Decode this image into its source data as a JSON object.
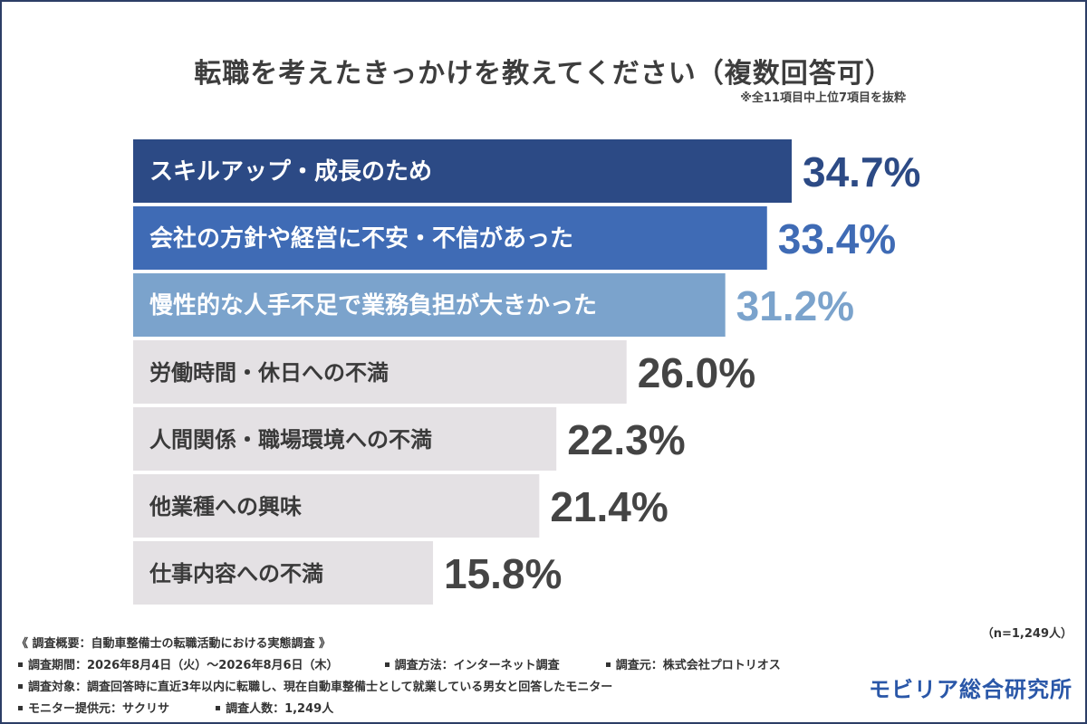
{
  "header": {
    "title": "転職を考えたきっかけを教えてください（複数回答可）",
    "note": "※全11項目中上位7項目を抜粋"
  },
  "chart_data": {
    "type": "bar",
    "orientation": "horizontal",
    "title": "転職を考えたきっかけを教えてください（複数回答可）",
    "categories": [
      "スキルアップ・成長のため",
      "会社の方針や経営に不安・不信があった",
      "慢性的な人手不足で業務負担が大きかった",
      "労働時間・休日への不満",
      "人間関係・職場環境への不満",
      "他業種への興味",
      "仕事内容への不満"
    ],
    "values": [
      34.7,
      33.4,
      31.2,
      26.0,
      22.3,
      21.4,
      15.8
    ],
    "value_labels": [
      "34.7%",
      "33.4%",
      "31.2%",
      "26.0%",
      "22.3%",
      "21.4%",
      "15.8%"
    ],
    "unit": "%",
    "xlim": [
      0,
      40
    ],
    "grid": false,
    "legend": "none",
    "bar_colors": [
      "#2c4a85",
      "#3f6bb5",
      "#7ba3cc",
      "#e4e1e4",
      "#e4e1e4",
      "#e4e1e4",
      "#e4e1e4"
    ],
    "label_colors": [
      "#ffffff",
      "#ffffff",
      "#ffffff",
      "#3a3a3a",
      "#3a3a3a",
      "#3a3a3a",
      "#3a3a3a"
    ],
    "value_colors": [
      "#2c4a85",
      "#3f6bb5",
      "#7ba3cc",
      "#444444",
      "#444444",
      "#444444",
      "#444444"
    ]
  },
  "footer": {
    "overview": "《 調査概要：自動車整備士の転職活動における実態調査 》",
    "period": "調査期間：2026年8月4日（火）〜2026年8月6日（木）",
    "method": "調査方法：インターネット調査",
    "source": "調査元：株式会社プロトリオス",
    "target": "調査対象：調査回答時に直近3年以内に転職し、現在自動車整備士として就業している男女と回答したモニター",
    "provider": "モニター提供元：サクリサ",
    "count": "調査人数：1,249人",
    "n": "（n=1,249人）",
    "logo": "モビリア総合研究所"
  }
}
